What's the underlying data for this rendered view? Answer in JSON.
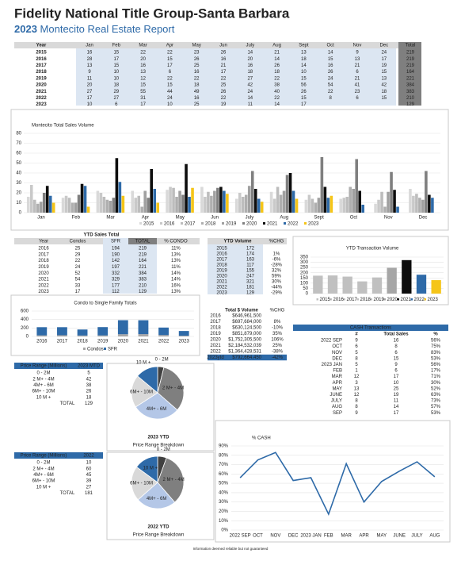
{
  "header": {
    "title": "Fidelity National Title Group-Santa Barbara",
    "year": "2023",
    "subtitle": "Montecito Real Estate Report"
  },
  "footer": "Information deemed reliable but not guaranteed",
  "chart_data": [
    {
      "type": "bar",
      "title": "Montecito Total Sales Volume",
      "row_header": "Year",
      "total_header": "Total",
      "categories": [
        "Jan",
        "Feb",
        "Mar",
        "Apr",
        "May",
        "Jun",
        "July",
        "Aug",
        "Sept",
        "Oct",
        "Nov",
        "Dec"
      ],
      "series": [
        {
          "name": "2015",
          "color": "#d9d9d9",
          "values": [
            16,
            15,
            22,
            22,
            23,
            26,
            14,
            21,
            13,
            14,
            9,
            24
          ],
          "total": 219
        },
        {
          "name": "2016",
          "color": "#c9c9c9",
          "values": [
            28,
            17,
            20,
            15,
            26,
            16,
            20,
            14,
            18,
            15,
            13,
            17
          ],
          "total": 219
        },
        {
          "name": "2017",
          "color": "#bdbdbd",
          "values": [
            13,
            15,
            16,
            17,
            25,
            21,
            16,
            26,
            14,
            16,
            21,
            19
          ],
          "total": 219
        },
        {
          "name": "2018",
          "color": "#afafaf",
          "values": [
            9,
            10,
            13,
            6,
            16,
            17,
            18,
            18,
            10,
            26,
            6,
            15
          ],
          "total": 164
        },
        {
          "name": "2019",
          "color": "#a0a0a0",
          "values": [
            11,
            10,
            12,
            22,
            22,
            22,
            27,
            22,
            15,
            24,
            21,
            13
          ],
          "total": 221
        },
        {
          "name": "2020",
          "color": "#7f7f7f",
          "values": [
            20,
            18,
            15,
            15,
            18,
            25,
            42,
            38,
            56,
            54,
            41,
            42
          ],
          "total": 384
        },
        {
          "name": "2021",
          "color": "#0d0d0d",
          "values": [
            27,
            29,
            55,
            44,
            49,
            26,
            24,
            40,
            26,
            22,
            23,
            18
          ],
          "total": 383
        },
        {
          "name": "2022",
          "color": "#2e6aa8",
          "values": [
            17,
            27,
            31,
            24,
            16,
            22,
            14,
            22,
            15,
            8,
            6,
            15
          ],
          "total": 210
        },
        {
          "name": "2023",
          "color": "#f5c518",
          "values": [
            10,
            6,
            17,
            10,
            25,
            19,
            11,
            14,
            17,
            null,
            null,
            null
          ],
          "total": 129
        }
      ],
      "ylim": [
        0,
        80
      ],
      "yticks": [
        0,
        10,
        20,
        30,
        40,
        50,
        60,
        70,
        80
      ],
      "grid": true
    },
    {
      "type": "stacked_bar",
      "title": "Condo to Single Family Totals",
      "table_title": "YTD Sales Total",
      "headers": [
        "Year",
        "Condos",
        "SFR",
        "TOTAL",
        "% CONDO"
      ],
      "categories": [
        "2016",
        "2017",
        "2018",
        "2019",
        "2020",
        "2021",
        "2022",
        "2023"
      ],
      "series": [
        {
          "name": "Condos",
          "color": "#a6a6a6",
          "values": [
            25,
            29,
            22,
            24,
            52,
            54,
            33,
            17
          ]
        },
        {
          "name": "SFR",
          "color": "#2e6aa8",
          "values": [
            194,
            190,
            142,
            197,
            332,
            329,
            177,
            112
          ]
        }
      ],
      "totals": [
        219,
        219,
        164,
        221,
        384,
        383,
        210,
        129
      ],
      "pct_condo": [
        "11%",
        "13%",
        "13%",
        "11%",
        "14%",
        "14%",
        "16%",
        "13%"
      ],
      "ylim": [
        0,
        600
      ],
      "yticks": [
        0,
        200,
        400,
        600
      ]
    },
    {
      "type": "bar",
      "title": "YTD Transaction Volume",
      "headers": [
        "YTD Volume",
        "%CHG"
      ],
      "categories": [
        "2015",
        "2016",
        "2017",
        "2018",
        "2019",
        "2020",
        "2021",
        "2022",
        "2023"
      ],
      "values": [
        172,
        174,
        163,
        117,
        155,
        247,
        321,
        181,
        129
      ],
      "pct_change": [
        null,
        "1%",
        "-6%",
        "-28%",
        "32%",
        "59%",
        "30%",
        "-44%",
        "-29%"
      ],
      "colors": [
        "#c0c0c0",
        "#c0c0c0",
        "#c0c0c0",
        "#c0c0c0",
        "#c0c0c0",
        "#a6a6a6",
        "#0d0d0d",
        "#2e6aa8",
        "#f5c518"
      ],
      "ylim": [
        0,
        350
      ],
      "yticks": [
        0,
        50,
        100,
        150,
        200,
        250,
        300,
        350
      ]
    },
    {
      "type": "line",
      "title": "% CASH",
      "color": "#2e6aa8",
      "categories": [
        "2022 SEP",
        "OCT",
        "NOV",
        "DEC",
        "2023 JAN",
        "FEB",
        "MAR",
        "APR",
        "MAY",
        "JUNE",
        "JULY",
        "AUG"
      ],
      "values": [
        56,
        75,
        83,
        53,
        56,
        17,
        71,
        30,
        52,
        63,
        73,
        57
      ],
      "ylim": [
        0,
        90
      ],
      "yticks": [
        {
          "value": 0,
          "label": "0%"
        },
        {
          "value": 10,
          "label": "10%"
        },
        {
          "value": 20,
          "label": "20%"
        },
        {
          "value": 30,
          "label": "30%"
        },
        {
          "value": 40,
          "label": "40%"
        },
        {
          "value": 50,
          "label": "50%"
        },
        {
          "value": 60,
          "label": "60%"
        },
        {
          "value": 70,
          "label": "70%"
        },
        {
          "value": 80,
          "label": "80%"
        },
        {
          "value": 90,
          "label": "90%"
        }
      ],
      "grid": true
    },
    {
      "type": "pie",
      "title": "2023 YTD",
      "subtitle": "Price Range Breakdown",
      "headers": [
        "Price Range (Millions)",
        "2023 MTD"
      ],
      "categories": [
        "0 - 2M",
        "2 M+ - 4M",
        "4M+ - 6M",
        "6M+ - 10M",
        "10 M +"
      ],
      "values": [
        5,
        42,
        38,
        26,
        18
      ],
      "total_label": "TOTAL",
      "total": 129,
      "colors": [
        "#404040",
        "#7f7f7f",
        "#b4c7e7",
        "#d9d9d9",
        "#2e6aa8"
      ]
    },
    {
      "type": "pie",
      "title": "2022 YTD",
      "subtitle": "Price Range Breakdown",
      "headers": [
        "Price Range (Millions)",
        "2022"
      ],
      "categories": [
        "0 - 2M",
        "2 M+ - 4M",
        "4M+ - 6M",
        "6M+ - 10M",
        "10 M +"
      ],
      "values": [
        10,
        60,
        45,
        39,
        27
      ],
      "total_label": "TOTAL",
      "total": 181,
      "colors": [
        "#404040",
        "#7f7f7f",
        "#b4c7e7",
        "#d9d9d9",
        "#2e6aa8"
      ]
    }
  ],
  "dollar_volume": {
    "headers": [
      "Total $ Volume",
      "%CHG"
    ],
    "rows": [
      [
        "2016",
        "$646,961,500",
        null
      ],
      [
        "2017",
        "$697,684,000",
        "8%"
      ],
      [
        "2018",
        "$630,124,500",
        "-10%"
      ],
      [
        "2019",
        "$851,879,000",
        "35%"
      ],
      [
        "2020",
        "$1,752,305,500",
        "106%"
      ],
      [
        "2021",
        "$2,184,532,039",
        "25%"
      ],
      [
        "2022",
        "$1,364,428,531",
        "-38%"
      ],
      [
        "2023ytd",
        "$792,664,450",
        "-42%"
      ]
    ]
  },
  "cash_transactions": {
    "title": "CASH Transactions",
    "headers": [
      "#",
      "Total Sales",
      "%"
    ],
    "rows": [
      [
        "2022 SEP",
        9,
        16,
        "56%"
      ],
      [
        "OCT",
        6,
        8,
        "75%"
      ],
      [
        "NOV",
        5,
        6,
        "83%"
      ],
      [
        "DEC",
        8,
        15,
        "53%"
      ],
      [
        "2023 JAN",
        5,
        9,
        "56%"
      ],
      [
        "FEB",
        1,
        6,
        "17%"
      ],
      [
        "MAR",
        12,
        17,
        "71%"
      ],
      [
        "APR",
        3,
        10,
        "30%"
      ],
      [
        "MAY",
        13,
        25,
        "52%"
      ],
      [
        "JUNE",
        12,
        19,
        "63%"
      ],
      [
        "JULY",
        8,
        11,
        "73%"
      ],
      [
        "AUG",
        8,
        14,
        "57%"
      ],
      [
        "SEP",
        9,
        17,
        "53%"
      ]
    ]
  }
}
